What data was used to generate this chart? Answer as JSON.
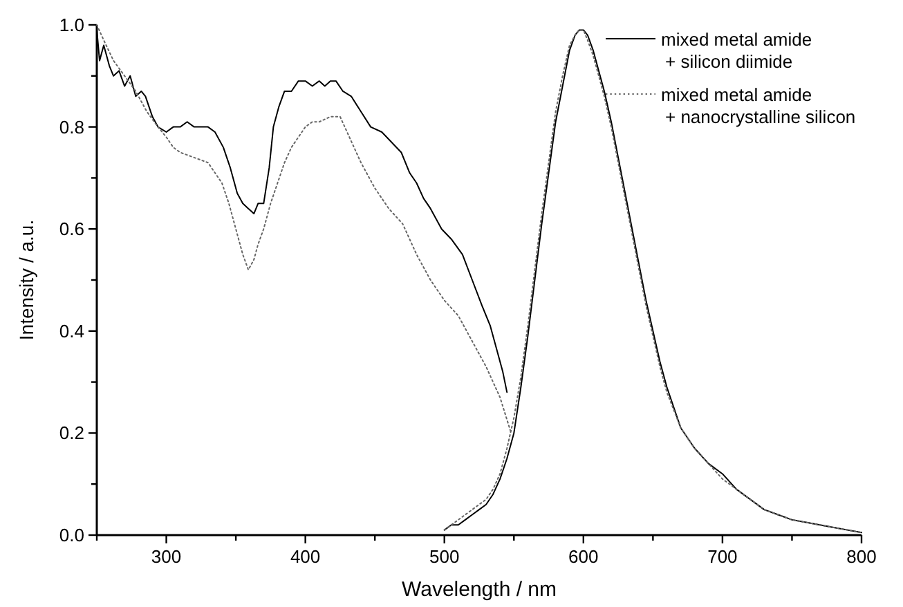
{
  "chart_data": {
    "type": "line",
    "xlabel": "Wavelength / nm",
    "ylabel": "Intensity / a.u.",
    "xlim": [
      250,
      800
    ],
    "ylim": [
      0,
      1
    ],
    "xticks": [
      {
        "value": 250,
        "label": null
      },
      300,
      {
        "value": 350,
        "label": null
      },
      400,
      {
        "value": 450,
        "label": null
      },
      500,
      {
        "value": 550,
        "label": null
      },
      600,
      {
        "value": 650,
        "label": null
      },
      700,
      {
        "value": 750,
        "label": null
      },
      800
    ],
    "yticks": [
      {
        "value": 0,
        "label": "0.0"
      },
      {
        "value": 0.1,
        "label": null
      },
      {
        "value": 0.2,
        "label": "0.2"
      },
      {
        "value": 0.3,
        "label": null
      },
      {
        "value": 0.4,
        "label": "0.4"
      },
      {
        "value": 0.5,
        "label": null
      },
      {
        "value": 0.6,
        "label": "0.6"
      },
      {
        "value": 0.7,
        "label": null
      },
      {
        "value": 0.8,
        "label": "0.8"
      },
      {
        "value": 0.9,
        "label": null
      },
      {
        "value": 1,
        "label": "1.0"
      }
    ],
    "grid": false,
    "legend": "top right",
    "marker": "none",
    "series": [
      {
        "name": "mixed metal amide\n+ silicon diimide",
        "color": "#000000",
        "line_style": "solid",
        "x": [
          250,
          252,
          255,
          259,
          262,
          266,
          270,
          274,
          278,
          282,
          285,
          290,
          294,
          300,
          305,
          310,
          315,
          320,
          325,
          330,
          335,
          341,
          346,
          351,
          355,
          359,
          363,
          366,
          370,
          374,
          377,
          381,
          385,
          390,
          395,
          400,
          405,
          410,
          414,
          418,
          422,
          427,
          433,
          440,
          447,
          455,
          462,
          469,
          475,
          480,
          485,
          490,
          498,
          505,
          513,
          520,
          527,
          533,
          538,
          542,
          545
        ],
        "values": [
          0.99,
          0.93,
          0.96,
          0.92,
          0.9,
          0.91,
          0.88,
          0.9,
          0.86,
          0.87,
          0.86,
          0.82,
          0.8,
          0.79,
          0.8,
          0.8,
          0.81,
          0.8,
          0.8,
          0.8,
          0.79,
          0.76,
          0.72,
          0.67,
          0.65,
          0.64,
          0.63,
          0.65,
          0.65,
          0.72,
          0.8,
          0.84,
          0.87,
          0.87,
          0.89,
          0.89,
          0.88,
          0.89,
          0.88,
          0.89,
          0.89,
          0.87,
          0.86,
          0.83,
          0.8,
          0.79,
          0.77,
          0.75,
          0.71,
          0.69,
          0.66,
          0.64,
          0.6,
          0.58,
          0.55,
          0.5,
          0.45,
          0.41,
          0.36,
          0.32,
          0.28
        ]
      },
      {
        "color": "#000000",
        "line_style": "solid",
        "x": [
          500,
          505,
          510,
          515,
          520,
          525,
          530,
          535,
          540,
          545,
          550,
          555,
          560,
          565,
          570,
          575,
          580,
          585,
          590,
          594,
          597,
          600,
          603,
          607,
          611,
          615,
          620,
          625,
          630,
          635,
          640,
          645,
          650,
          655,
          660,
          670,
          680,
          690,
          700,
          710,
          720,
          730,
          740,
          750,
          760,
          770,
          780,
          790,
          800
        ],
        "values": [
          0.01,
          0.02,
          0.02,
          0.03,
          0.04,
          0.05,
          0.06,
          0.08,
          0.11,
          0.15,
          0.2,
          0.29,
          0.39,
          0.5,
          0.61,
          0.71,
          0.81,
          0.88,
          0.95,
          0.98,
          0.99,
          0.99,
          0.98,
          0.95,
          0.91,
          0.87,
          0.81,
          0.74,
          0.67,
          0.6,
          0.53,
          0.46,
          0.4,
          0.34,
          0.29,
          0.21,
          0.17,
          0.14,
          0.12,
          0.09,
          0.07,
          0.05,
          0.04,
          0.03,
          0.025,
          0.02,
          0.015,
          0.01,
          0.005
        ]
      },
      {
        "name": "mixed metal amide\n+ nanocrystalline silicon",
        "color": "#666666",
        "line_style": "dotted",
        "x": [
          250,
          255,
          262,
          270,
          278,
          286,
          294,
          300,
          305,
          310,
          320,
          330,
          335,
          340,
          345,
          350,
          355,
          359,
          363,
          366,
          370,
          375,
          380,
          385,
          390,
          395,
          400,
          405,
          410,
          418,
          425,
          430,
          440,
          450,
          460,
          470,
          480,
          490,
          500,
          510,
          520,
          530,
          540,
          548
        ],
        "values": [
          1,
          0.97,
          0.93,
          0.9,
          0.87,
          0.83,
          0.8,
          0.78,
          0.76,
          0.75,
          0.74,
          0.73,
          0.71,
          0.69,
          0.65,
          0.6,
          0.55,
          0.52,
          0.54,
          0.57,
          0.6,
          0.65,
          0.69,
          0.73,
          0.76,
          0.78,
          0.8,
          0.81,
          0.81,
          0.82,
          0.82,
          0.79,
          0.73,
          0.68,
          0.64,
          0.61,
          0.55,
          0.5,
          0.46,
          0.43,
          0.38,
          0.33,
          0.27,
          0.2
        ]
      },
      {
        "color": "#666666",
        "line_style": "dotted",
        "x": [
          500,
          505,
          510,
          515,
          520,
          525,
          530,
          535,
          540,
          545,
          550,
          555,
          560,
          565,
          570,
          575,
          580,
          585,
          590,
          594,
          597,
          600,
          603,
          607,
          611,
          615,
          620,
          625,
          630,
          635,
          640,
          645,
          650,
          655,
          660,
          670,
          680,
          690,
          700,
          710,
          720,
          730,
          740,
          750,
          760,
          770,
          780,
          790,
          800
        ],
        "values": [
          0.01,
          0.02,
          0.03,
          0.04,
          0.05,
          0.06,
          0.07,
          0.09,
          0.12,
          0.17,
          0.23,
          0.31,
          0.41,
          0.52,
          0.63,
          0.73,
          0.83,
          0.9,
          0.96,
          0.98,
          0.99,
          0.99,
          0.97,
          0.94,
          0.9,
          0.86,
          0.8,
          0.73,
          0.66,
          0.59,
          0.52,
          0.45,
          0.39,
          0.33,
          0.28,
          0.21,
          0.17,
          0.14,
          0.11,
          0.09,
          0.07,
          0.05,
          0.04,
          0.03,
          0.025,
          0.02,
          0.015,
          0.01,
          0.005
        ]
      }
    ]
  }
}
